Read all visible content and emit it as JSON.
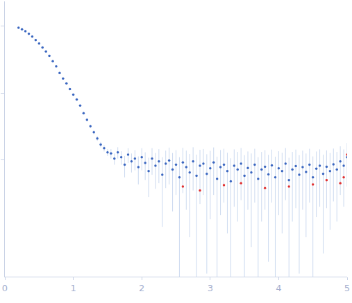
{
  "chart_data": {
    "type": "scatter",
    "log": "y",
    "grid": false,
    "tick_labels": "x",
    "marker": "circle",
    "xlim": [
      0,
      5
    ],
    "xticks": [
      0,
      1,
      2,
      3,
      4,
      5
    ],
    "ylim": [
      0.00018,
      2.35
    ],
    "yticks": [
      0.01,
      0.1,
      1
    ],
    "x": [
      0.2,
      0.25,
      0.3,
      0.35,
      0.4,
      0.45,
      0.5,
      0.55,
      0.6,
      0.65,
      0.7,
      0.75,
      0.8,
      0.85,
      0.9,
      0.95,
      1.0,
      1.05,
      1.1,
      1.15,
      1.2,
      1.25,
      1.3,
      1.35,
      1.4,
      1.45,
      1.5,
      1.55,
      1.6,
      1.65,
      1.7,
      1.75,
      1.8,
      1.85,
      1.9,
      1.95,
      2.0,
      2.05,
      2.1,
      2.15,
      2.2,
      2.25,
      2.3,
      2.35,
      2.4,
      2.45,
      2.5,
      2.55,
      2.6,
      2.65,
      2.7,
      2.75,
      2.8,
      2.85,
      2.9,
      2.95,
      3.0,
      3.05,
      3.1,
      3.15,
      3.2,
      3.25,
      3.3,
      3.35,
      3.4,
      3.45,
      3.5,
      3.55,
      3.6,
      3.65,
      3.7,
      3.75,
      3.8,
      3.85,
      3.9,
      3.95,
      4.0,
      4.05,
      4.1,
      4.15,
      4.2,
      4.25,
      4.3,
      4.35,
      4.4,
      4.45,
      4.5,
      4.55,
      4.6,
      4.65,
      4.7,
      4.75,
      4.8,
      4.85,
      4.9,
      4.95,
      5.0
    ],
    "series": [
      {
        "color": "#3a66c0",
        "values": [
          0.95,
          0.9,
          0.84,
          0.77,
          0.7,
          0.62,
          0.55,
          0.48,
          0.42,
          0.36,
          0.3,
          0.25,
          0.2,
          0.165,
          0.14,
          0.115,
          0.095,
          0.08,
          0.065,
          0.05,
          0.04,
          0.032,
          0.026,
          0.021,
          0.017,
          0.015,
          0.013,
          0.0125,
          0.0105,
          0.013,
          0.011,
          0.0085,
          0.012,
          0.0095,
          0.0105,
          0.0078,
          0.011,
          0.009,
          0.0068,
          0.0105,
          0.0082,
          0.0095,
          0.006,
          0.0088,
          0.0098,
          0.0072,
          0.0085,
          0.0055,
          0.0092,
          0.0078,
          0.0065,
          0.0095,
          0.0058,
          0.0082,
          0.0088,
          0.0062,
          0.0075,
          0.0092,
          0.0052,
          0.0078,
          0.0085,
          0.0068,
          0.0048,
          0.0082,
          0.0072,
          0.0088,
          0.0058,
          0.0076,
          0.0065,
          0.0085,
          0.0052,
          0.0072,
          0.0079,
          0.0061,
          0.0083,
          0.0055,
          0.0075,
          0.0068,
          0.0088,
          0.005,
          0.0072,
          0.0081,
          0.006,
          0.0078,
          0.0066,
          0.0085,
          0.0055,
          0.0074,
          0.0082,
          0.0062,
          0.0079,
          0.0068,
          0.0086,
          0.0072,
          0.0095,
          0.0082,
          0.011
        ],
        "errors": [
          0.01,
          0.01,
          0.009,
          0.008,
          0.007,
          0.006,
          0.006,
          0.005,
          0.005,
          0.004,
          0.004,
          0.0035,
          0.003,
          0.003,
          0.003,
          0.0025,
          0.0025,
          0.002,
          0.002,
          0.002,
          0.002,
          0.0018,
          0.0018,
          0.0017,
          0.0016,
          0.0016,
          0.0015,
          0.002,
          0.002,
          0.0025,
          0.0025,
          0.003,
          0.003,
          0.003,
          0.0035,
          0.0035,
          0.004,
          0.004,
          0.004,
          0.0045,
          0.0045,
          0.005,
          0.005,
          0.005,
          0.0055,
          0.0055,
          0.0055,
          0.0055,
          0.006,
          0.006,
          0.0058,
          0.006,
          0.0062,
          0.006,
          0.0058,
          0.006,
          0.0062,
          0.0062,
          0.006,
          0.0063,
          0.0062,
          0.006,
          0.0058,
          0.0062,
          0.006,
          0.0063,
          0.006,
          0.0058,
          0.006,
          0.0062,
          0.0058,
          0.006,
          0.0061,
          0.0058,
          0.006,
          0.0057,
          0.006,
          0.006,
          0.0063,
          0.0058,
          0.006,
          0.0062,
          0.0058,
          0.006,
          0.0059,
          0.0062,
          0.0058,
          0.006,
          0.0062,
          0.0058,
          0.006,
          0.0059,
          0.0062,
          0.006,
          0.0065,
          0.0062,
          0.007
        ]
      },
      {
        "color": "#e03030",
        "x": [
          2.6,
          2.85,
          3.2,
          3.45,
          3.8,
          4.15,
          4.5,
          4.7,
          4.9,
          4.95,
          5.0
        ],
        "values": [
          0.004,
          0.0035,
          0.0042,
          0.0045,
          0.0038,
          0.004,
          0.0043,
          0.005,
          0.0045,
          0.0055,
          0.012
        ]
      }
    ]
  }
}
